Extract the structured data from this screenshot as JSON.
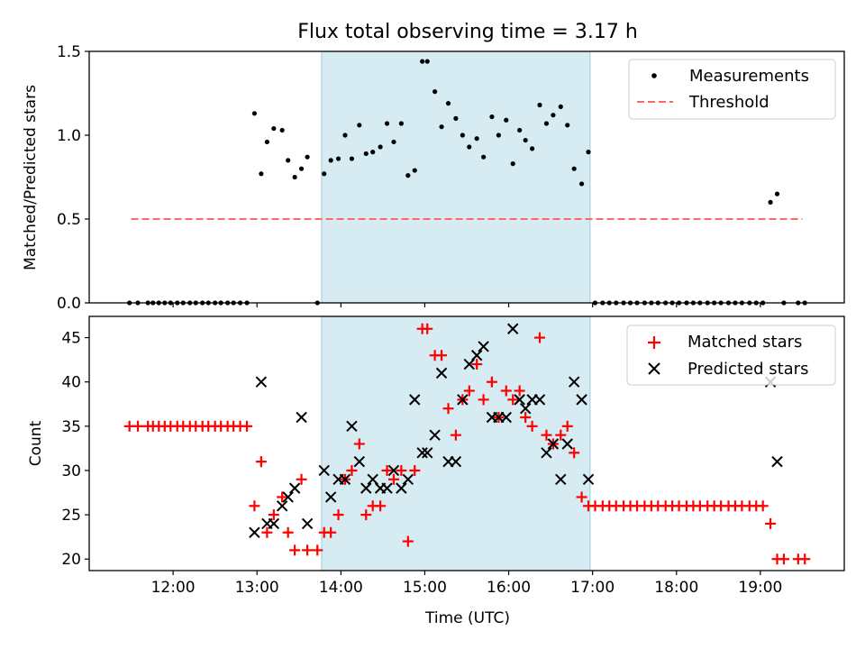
{
  "title": "Flux total observing time = 3.17 h",
  "colors": {
    "highlight": "#add8e6",
    "threshold": "#ff6666",
    "matched": "#ff0000",
    "predicted": "#000000",
    "measurement": "#000000"
  },
  "chart_data": [
    {
      "type": "scatter",
      "title": "Flux total observing time = 3.17 h",
      "xlabel": "",
      "ylabel": "Matched/Predicted stars",
      "xlim": [
        11.0,
        20.0
      ],
      "ylim": [
        0.0,
        1.5
      ],
      "yticks": [
        "0.0",
        "0.5",
        "1.0",
        "1.5"
      ],
      "shaded_region": [
        13.77,
        16.97
      ],
      "grid": false,
      "legend_position": "top-right",
      "series": [
        {
          "name": "Measurements",
          "marker": "dot",
          "x": [
            11.48,
            11.58,
            11.7,
            11.76,
            11.83,
            11.9,
            11.97,
            12.05,
            12.12,
            12.2,
            12.27,
            12.35,
            12.42,
            12.5,
            12.57,
            12.65,
            12.72,
            12.8,
            12.88,
            12.97,
            13.05,
            13.12,
            13.2,
            13.3,
            13.37,
            13.45,
            13.53,
            13.6,
            13.72,
            13.8,
            13.88,
            13.97,
            14.05,
            14.13,
            14.22,
            14.3,
            14.38,
            14.47,
            14.55,
            14.63,
            14.72,
            14.8,
            14.88,
            14.97,
            15.03,
            15.12,
            15.2,
            15.28,
            15.37,
            15.45,
            15.53,
            15.62,
            15.7,
            15.8,
            15.88,
            15.97,
            16.05,
            16.13,
            16.2,
            16.28,
            16.37,
            16.45,
            16.53,
            16.62,
            16.7,
            16.78,
            16.87,
            16.95,
            17.03,
            17.12,
            17.2,
            17.28,
            17.37,
            17.45,
            17.53,
            17.62,
            17.7,
            17.78,
            17.87,
            17.95,
            18.03,
            18.12,
            18.2,
            18.28,
            18.37,
            18.45,
            18.53,
            18.62,
            18.7,
            18.78,
            18.87,
            18.95,
            19.03,
            19.12,
            19.2,
            19.28,
            19.45,
            19.53
          ],
          "y": [
            0,
            0,
            0,
            0,
            0,
            0,
            0,
            0,
            0,
            0,
            0,
            0,
            0,
            0,
            0,
            0,
            0,
            0,
            0,
            1.13,
            0.77,
            0.96,
            1.04,
            1.03,
            0.85,
            0.75,
            0.8,
            0.87,
            0,
            0.77,
            0.85,
            0.86,
            1.0,
            0.86,
            1.06,
            0.89,
            0.9,
            0.93,
            1.07,
            0.96,
            1.07,
            0.76,
            0.79,
            1.44,
            1.44,
            1.26,
            1.05,
            1.19,
            1.1,
            1.0,
            0.93,
            0.98,
            0.87,
            1.11,
            1.0,
            1.09,
            0.83,
            1.03,
            0.97,
            0.92,
            1.18,
            1.07,
            1.12,
            1.17,
            1.06,
            0.8,
            0.71,
            0.9,
            0,
            0,
            0,
            0,
            0,
            0,
            0,
            0,
            0,
            0,
            0,
            0,
            0,
            0,
            0,
            0,
            0,
            0,
            0,
            0,
            0,
            0,
            0,
            0,
            0,
            0.6,
            0.65,
            0,
            0,
            0
          ]
        },
        {
          "name": "Threshold",
          "marker": "dashed-line",
          "x": [
            11.5,
            19.5
          ],
          "y": [
            0.5,
            0.5
          ]
        }
      ]
    },
    {
      "type": "scatter",
      "xlabel": "Time (UTC)",
      "ylabel": "Count",
      "xlim": [
        11.0,
        20.0
      ],
      "ylim": [
        18.7,
        47.4
      ],
      "xticks": [
        "12:00",
        "13:00",
        "14:00",
        "15:00",
        "16:00",
        "17:00",
        "18:00",
        "19:00"
      ],
      "yticks": [
        "20",
        "25",
        "30",
        "35",
        "40",
        "45"
      ],
      "shaded_region": [
        13.77,
        16.97
      ],
      "grid": false,
      "legend_position": "top-right",
      "series": [
        {
          "name": "Matched stars",
          "marker": "plus",
          "x": [
            11.48,
            11.58,
            11.7,
            11.76,
            11.83,
            11.9,
            11.97,
            12.05,
            12.12,
            12.2,
            12.27,
            12.35,
            12.42,
            12.5,
            12.57,
            12.65,
            12.72,
            12.8,
            12.88,
            12.97,
            13.05,
            13.12,
            13.2,
            13.3,
            13.37,
            13.45,
            13.53,
            13.6,
            13.72,
            13.8,
            13.88,
            13.97,
            14.05,
            14.13,
            14.22,
            14.3,
            14.38,
            14.47,
            14.55,
            14.63,
            14.72,
            14.8,
            14.88,
            14.97,
            15.03,
            15.12,
            15.2,
            15.28,
            15.37,
            15.45,
            15.53,
            15.62,
            15.7,
            15.8,
            15.88,
            15.97,
            16.05,
            16.13,
            16.2,
            16.28,
            16.37,
            16.45,
            16.53,
            16.62,
            16.7,
            16.78,
            16.87,
            16.95,
            17.03,
            17.12,
            17.2,
            17.28,
            17.37,
            17.45,
            17.53,
            17.62,
            17.7,
            17.78,
            17.87,
            17.95,
            18.03,
            18.12,
            18.2,
            18.28,
            18.37,
            18.45,
            18.53,
            18.62,
            18.7,
            18.78,
            18.87,
            18.95,
            19.03,
            19.12,
            19.2,
            19.28,
            19.45,
            19.53
          ],
          "y": [
            35,
            35,
            35,
            35,
            35,
            35,
            35,
            35,
            35,
            35,
            35,
            35,
            35,
            35,
            35,
            35,
            35,
            35,
            35,
            26,
            31,
            23,
            25,
            27,
            23,
            21,
            29,
            21,
            21,
            23,
            23,
            25,
            29,
            30,
            33,
            25,
            26,
            26,
            30,
            29,
            30,
            22,
            30,
            46,
            46,
            43,
            43,
            37,
            34,
            38,
            39,
            42,
            38,
            40,
            36,
            39,
            38,
            39,
            36,
            35,
            45,
            34,
            33,
            34,
            35,
            32,
            27,
            26,
            26,
            26,
            26,
            26,
            26,
            26,
            26,
            26,
            26,
            26,
            26,
            26,
            26,
            26,
            26,
            26,
            26,
            26,
            26,
            26,
            26,
            26,
            26,
            26,
            26,
            24,
            20,
            20,
            20,
            20
          ]
        },
        {
          "name": "Predicted stars",
          "marker": "x",
          "x": [
            12.97,
            13.05,
            13.12,
            13.2,
            13.3,
            13.37,
            13.45,
            13.53,
            13.6,
            13.8,
            13.88,
            13.97,
            14.05,
            14.13,
            14.22,
            14.3,
            14.38,
            14.47,
            14.55,
            14.63,
            14.72,
            14.8,
            14.88,
            14.97,
            15.03,
            15.12,
            15.2,
            15.28,
            15.37,
            15.45,
            15.53,
            15.62,
            15.7,
            15.8,
            15.88,
            15.97,
            16.05,
            16.13,
            16.2,
            16.28,
            16.37,
            16.45,
            16.53,
            16.62,
            16.7,
            16.78,
            16.87,
            16.95,
            19.12,
            19.2
          ],
          "y": [
            23,
            40,
            24,
            24,
            26,
            27,
            28,
            36,
            24,
            30,
            27,
            29,
            29,
            35,
            31,
            28,
            29,
            28,
            28,
            30,
            28,
            29,
            38,
            32,
            32,
            34,
            41,
            31,
            31,
            38,
            42,
            43,
            44,
            36,
            36,
            36,
            46,
            38,
            37,
            38,
            38,
            32,
            33,
            29,
            33,
            40,
            38,
            29,
            40,
            31
          ]
        }
      ]
    }
  ]
}
